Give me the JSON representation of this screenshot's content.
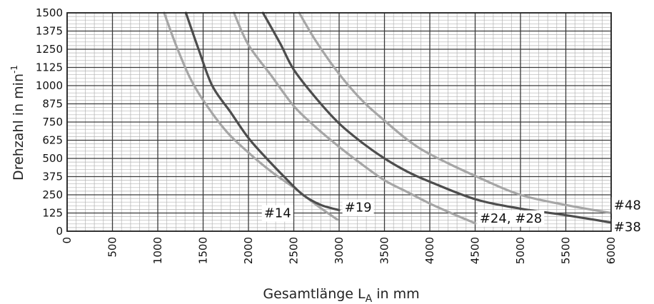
{
  "chart_data": {
    "type": "line",
    "xlabel": {
      "main": "Gesamtlänge L",
      "sub": "A",
      "unit": " in mm"
    },
    "ylabel": {
      "main": "Drehzahl in min",
      "sup": "-1"
    },
    "xlim": [
      0,
      6000
    ],
    "ylim": [
      0,
      1500
    ],
    "x_ticks": [
      0,
      500,
      1000,
      1500,
      2000,
      2500,
      3000,
      3500,
      4000,
      4500,
      5000,
      5500,
      6000
    ],
    "y_ticks": [
      0,
      125,
      250,
      375,
      500,
      625,
      750,
      875,
      1000,
      1125,
      1250,
      1375,
      1500
    ],
    "x_minor_step": 100,
    "y_minor_step": 25,
    "grid": true,
    "series": [
      {
        "name": "#14",
        "color": "#a6a6a6",
        "x": [
          1070,
          1200,
          1350,
          1500,
          1750,
          2000,
          2250,
          2500,
          2750,
          2980
        ],
        "y": [
          1500,
          1280,
          1060,
          900,
          690,
          540,
          410,
          300,
          180,
          80
        ]
      },
      {
        "name": "#19",
        "color": "#4d4d4d",
        "x": [
          1310,
          1450,
          1600,
          1800,
          2000,
          2200,
          2400,
          2600,
          2800,
          3000
        ],
        "y": [
          1500,
          1250,
          1000,
          820,
          640,
          500,
          370,
          250,
          180,
          145
        ]
      },
      {
        "name": "#24, #28",
        "color": "#a6a6a6",
        "x": [
          1840,
          2000,
          2250,
          2500,
          2750,
          3000,
          3250,
          3500,
          3750,
          4000,
          4250,
          4500
        ],
        "y": [
          1500,
          1280,
          1070,
          860,
          710,
          580,
          460,
          350,
          270,
          190,
          120,
          55
        ]
      },
      {
        "name": "#38",
        "color": "#4d4d4d",
        "x": [
          2160,
          2350,
          2500,
          2750,
          3000,
          3250,
          3500,
          3750,
          4000,
          4500,
          5000,
          5500,
          6000
        ],
        "y": [
          1500,
          1290,
          1110,
          910,
          740,
          610,
          500,
          410,
          340,
          220,
          155,
          110,
          60
        ]
      },
      {
        "name": "#48",
        "color": "#a6a6a6",
        "x": [
          2560,
          2750,
          3000,
          3250,
          3500,
          3750,
          4000,
          4500,
          5000,
          5500,
          6000
        ],
        "y": [
          1500,
          1300,
          1080,
          900,
          760,
          630,
          530,
          380,
          250,
          180,
          125
        ]
      }
    ],
    "curve_labels": [
      {
        "text": "#14",
        "series": "#14",
        "at": [
          2470,
          95
        ],
        "anchor": "end"
      },
      {
        "text": "#19",
        "series": "#19",
        "at": [
          3060,
          135
        ],
        "anchor": "start"
      },
      {
        "text": "#24, #28",
        "series": "#24, #28",
        "at": [
          4550,
          60
        ],
        "anchor": "start"
      },
      {
        "text": "#48",
        "series": "#48",
        "at": [
          6030,
          150
        ],
        "anchor": "start"
      },
      {
        "text": "#38",
        "series": "#38",
        "at": [
          6030,
          0
        ],
        "anchor": "start"
      }
    ]
  }
}
